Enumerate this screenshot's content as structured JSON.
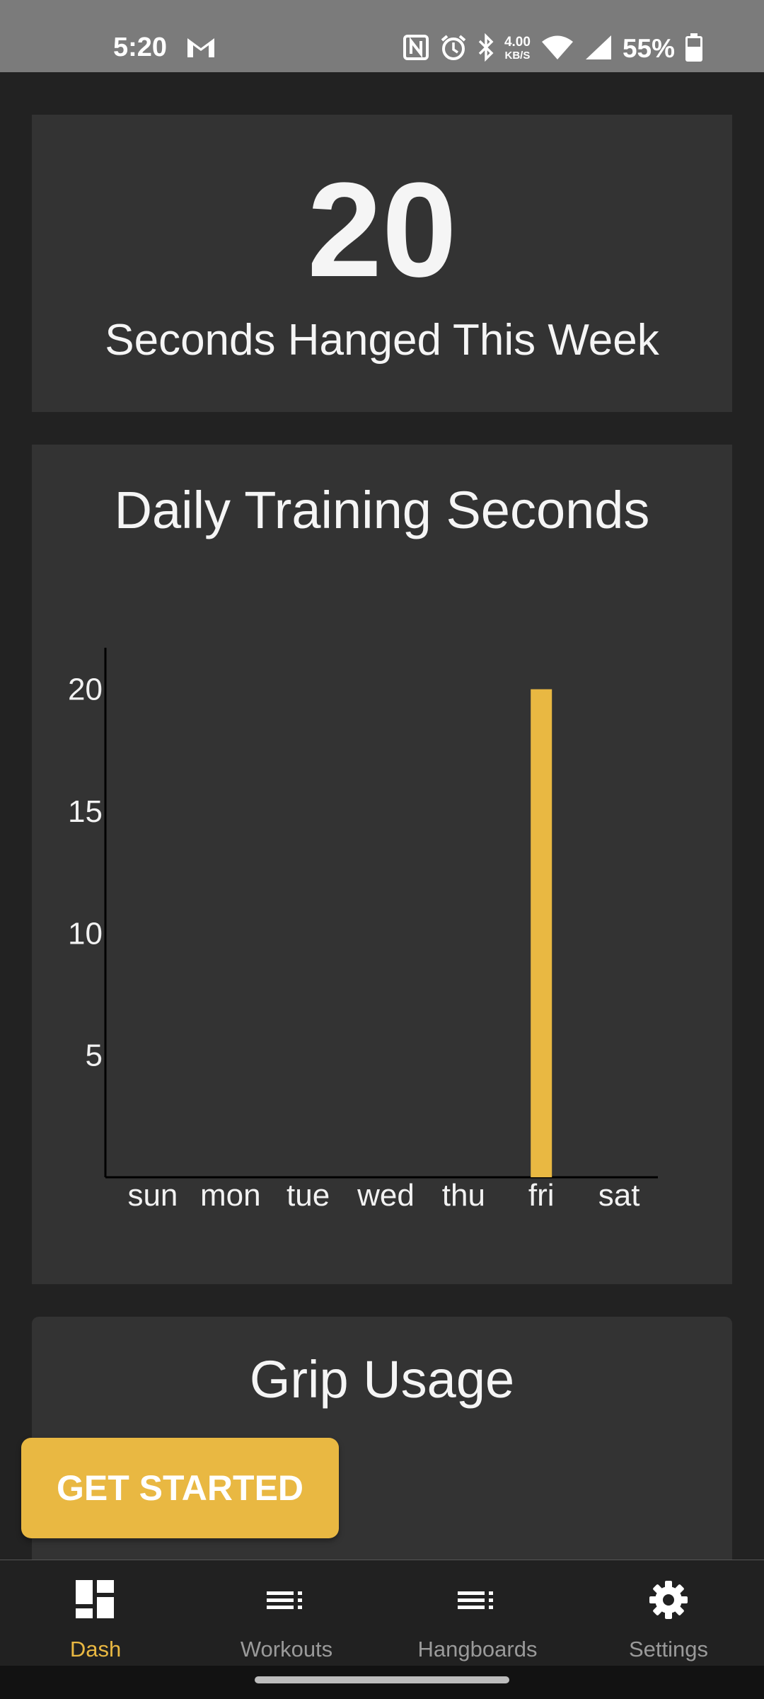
{
  "status_bar": {
    "time": "5:20",
    "net_speed": "4.00",
    "net_unit": "KB/S",
    "battery": "55%",
    "icons": [
      "gmail-icon",
      "nfc-icon",
      "alarm-icon",
      "bluetooth-icon",
      "wifi-icon",
      "signal-icon",
      "battery-icon"
    ]
  },
  "summary": {
    "total_seconds": "20",
    "caption": "Seconds Hanged This Week"
  },
  "daily_chart": {
    "title": "Daily Training Seconds"
  },
  "chart_data": {
    "type": "bar",
    "title": "Daily Training Seconds",
    "categories": [
      "sun",
      "mon",
      "tue",
      "wed",
      "thu",
      "fri",
      "sat"
    ],
    "values": [
      0,
      0,
      0,
      0,
      0,
      20,
      0
    ],
    "yticks": [
      5,
      10,
      15,
      20
    ],
    "ylim": [
      0,
      21.7
    ],
    "bar_color": "#e9b842",
    "grid": false
  },
  "grip": {
    "title": "Grip Usage"
  },
  "cta": {
    "label": "GET STARTED"
  },
  "nav": {
    "items": [
      {
        "label": "Dash",
        "icon": "dashboard-icon",
        "active": true
      },
      {
        "label": "Workouts",
        "icon": "list-icon",
        "active": false
      },
      {
        "label": "Hangboards",
        "icon": "list-icon",
        "active": false
      },
      {
        "label": "Settings",
        "icon": "gear-icon",
        "active": false
      }
    ]
  },
  "colors": {
    "accent": "#e9b842",
    "background": "#222222",
    "card": "#333333"
  }
}
